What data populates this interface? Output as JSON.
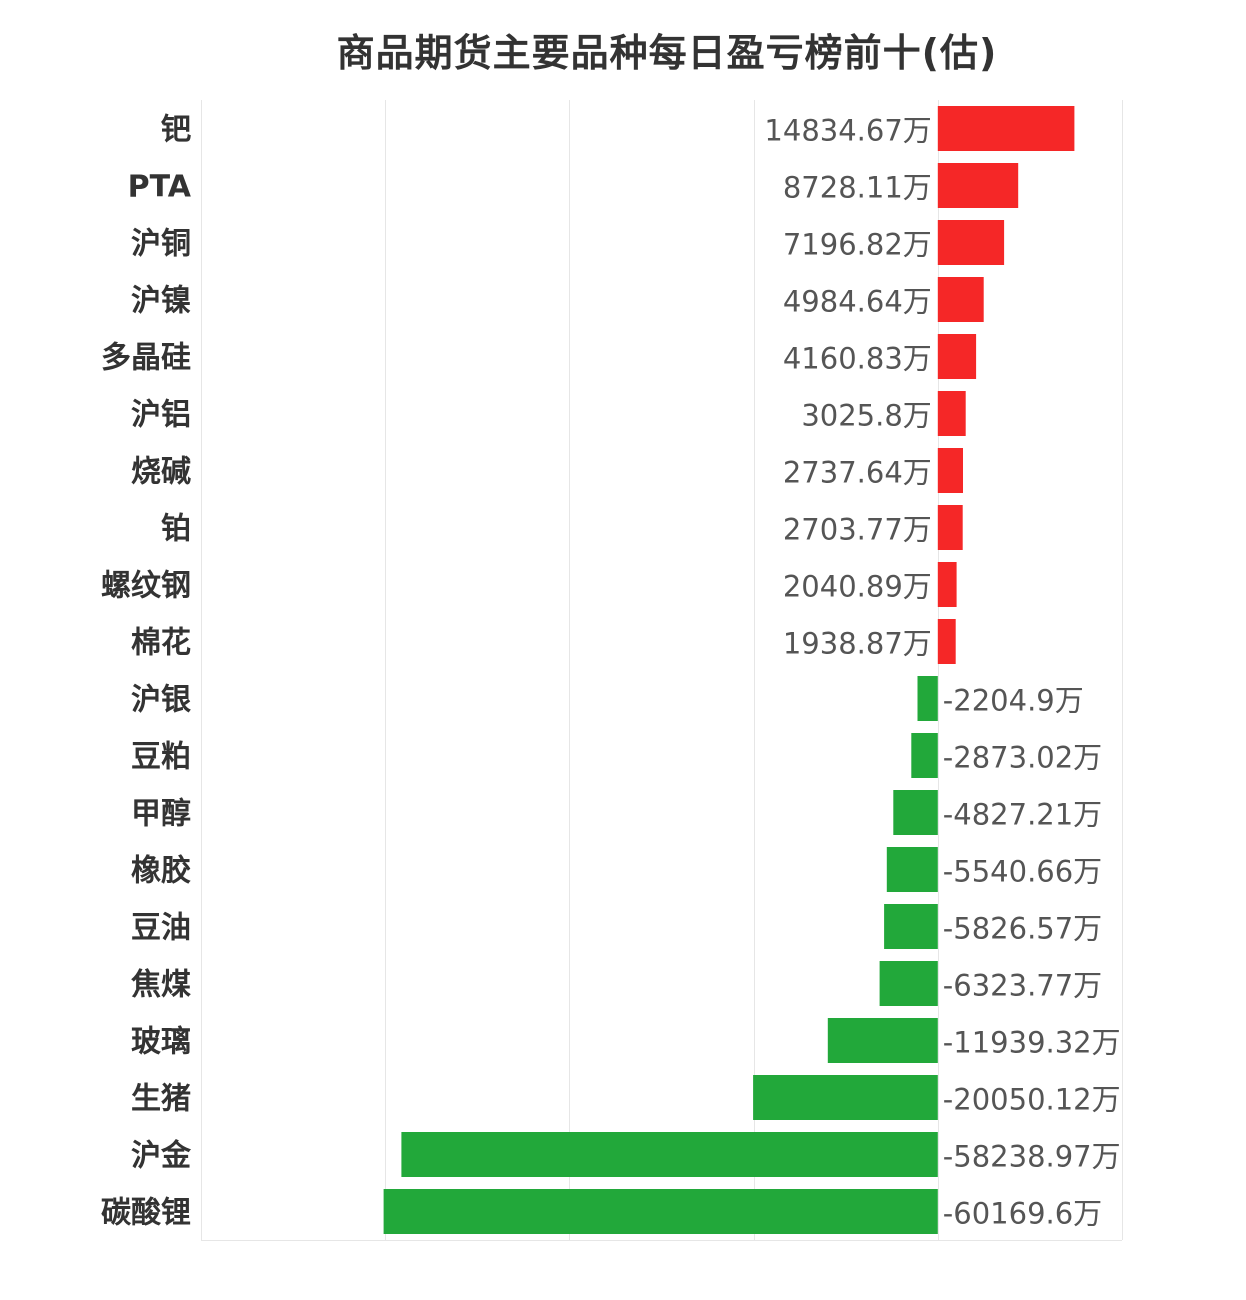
{
  "chart_data": {
    "type": "bar",
    "orientation": "horizontal",
    "title": "商品期货主要品种每日盈亏榜前十(估)",
    "unit": "万",
    "xlim": [
      -80000,
      20000
    ],
    "grid": true,
    "colors": {
      "positive": "#f52727",
      "negative": "#22a83a"
    },
    "categories": [
      "钯",
      "PTA",
      "沪铜",
      "沪镍",
      "多晶硅",
      "沪铝",
      "烧碱",
      "铂",
      "螺纹钢",
      "棉花",
      "沪银",
      "豆粕",
      "甲醇",
      "橡胶",
      "豆油",
      "焦煤",
      "玻璃",
      "生猪",
      "沪金",
      "碳酸锂"
    ],
    "values": [
      14834.67,
      8728.11,
      7196.82,
      4984.64,
      4160.83,
      3025.8,
      2737.64,
      2703.77,
      2040.89,
      1938.87,
      -2204.9,
      -2873.02,
      -4827.21,
      -5540.66,
      -5826.57,
      -6323.77,
      -11939.32,
      -20050.12,
      -58238.97,
      -60169.6
    ],
    "value_labels": [
      "14834.67万",
      "8728.11万",
      "7196.82万",
      "4984.64万",
      "4160.83万",
      "3025.8万",
      "2737.64万",
      "2703.77万",
      "2040.89万",
      "1938.87万",
      "-2204.9万",
      "-2873.02万",
      "-4827.21万",
      "-5540.66万",
      "-5826.57万",
      "-6323.77万",
      "-11939.32万",
      "-20050.12万",
      "-58238.97万",
      "-60169.6万"
    ]
  }
}
